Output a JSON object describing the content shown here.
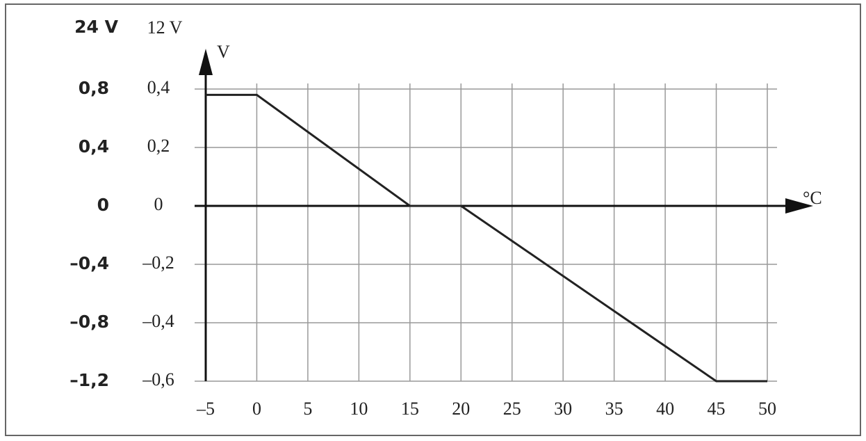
{
  "chart_data": {
    "type": "line",
    "column_headers": [
      "24 V",
      "12 V"
    ],
    "y_axis_label": "V",
    "x_axis_label": "°C",
    "x": [
      -5,
      0,
      15,
      20,
      45,
      50
    ],
    "series": [
      {
        "color": "#222222",
        "values": [
          0.38,
          0.38,
          0,
          0,
          -0.6,
          -0.6
        ]
      }
    ],
    "xlim": [
      -5,
      50
    ],
    "xticks": [
      {
        "value": -5,
        "label": "–5"
      },
      0,
      5,
      10,
      15,
      20,
      25,
      30,
      35,
      40,
      45,
      50
    ],
    "ylim": [
      -0.6,
      0.4
    ],
    "yticks": [
      {
        "value": 0.4,
        "label": "0,4"
      },
      {
        "value": 0.2,
        "label": "0,2"
      },
      0,
      {
        "value": -0.2,
        "label": "–0,2"
      },
      {
        "value": -0.4,
        "label": "–0,4"
      },
      {
        "value": -0.6,
        "label": "–0,6"
      }
    ],
    "y2lim": [
      -1.2,
      0.8
    ],
    "y2ticks": [
      {
        "value": 0.8,
        "label": "0,8"
      },
      {
        "value": 0.4,
        "label": "0,4"
      },
      0,
      {
        "value": -0.4,
        "label": "–0,4"
      },
      {
        "value": -0.8,
        "label": "–0,8"
      },
      {
        "value": -1.2,
        "label": "–1,2"
      }
    ],
    "grid": true
  }
}
